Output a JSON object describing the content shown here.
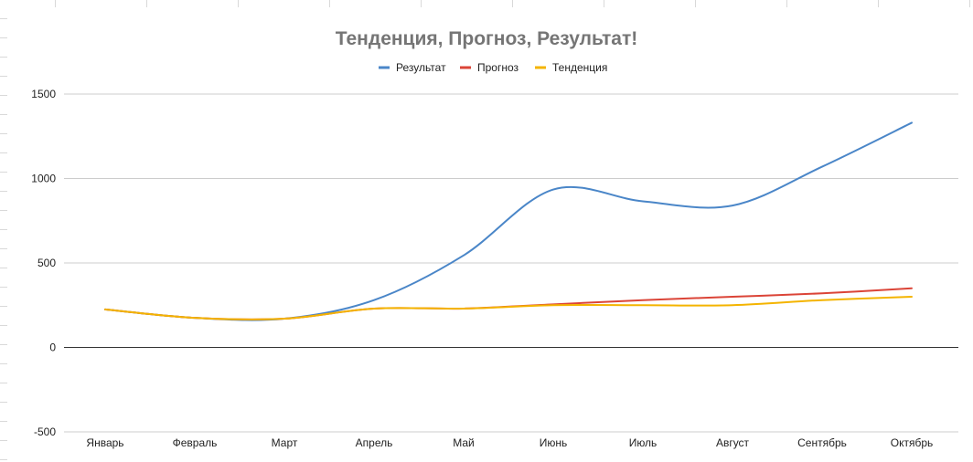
{
  "chart_data": {
    "type": "line",
    "title": "Тенденция, Прогноз, Результат!",
    "categories": [
      "Январь",
      "Февраль",
      "Март",
      "Апрель",
      "Май",
      "Июнь",
      "Июль",
      "Август",
      "Сентябрь",
      "Октябрь"
    ],
    "series": [
      {
        "name": "Результат",
        "color": "#4a86c8",
        "values": [
          225,
          175,
          170,
          280,
          545,
          935,
          865,
          840,
          1070,
          1330
        ]
      },
      {
        "name": "Прогноз",
        "color": "#db4437",
        "values": [
          225,
          175,
          170,
          230,
          230,
          255,
          280,
          300,
          320,
          350
        ]
      },
      {
        "name": "Тенденция",
        "color": "#f4b400",
        "values": [
          225,
          175,
          170,
          230,
          230,
          250,
          250,
          250,
          280,
          300
        ]
      }
    ],
    "yticks": [
      -500,
      0,
      500,
      1000,
      1500
    ],
    "ylim": [
      -500,
      1500
    ],
    "grid": true,
    "legend_position": "top"
  }
}
